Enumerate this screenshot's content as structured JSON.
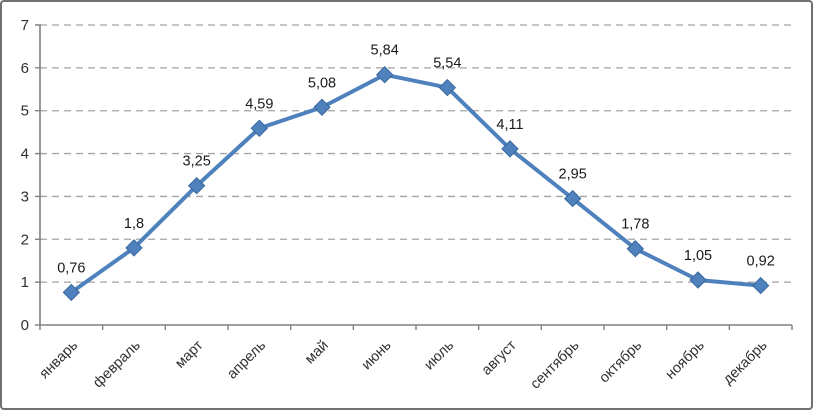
{
  "chart_data": {
    "type": "line",
    "title": "",
    "categories": [
      "январь",
      "февраль",
      "март",
      "апрель",
      "май",
      "июнь",
      "июль",
      "август",
      "сентябрь",
      "октябрь",
      "ноябрь",
      "декабрь"
    ],
    "series": [
      {
        "name": "",
        "values": [
          0.76,
          1.8,
          3.25,
          4.59,
          5.08,
          5.84,
          5.54,
          4.11,
          2.95,
          1.78,
          1.05,
          0.92
        ],
        "point_labels": [
          "0,76",
          "1,8",
          "3,25",
          "4,59",
          "5,08",
          "5,84",
          "5,54",
          "4,11",
          "2,95",
          "1,78",
          "1,05",
          "0,92"
        ]
      }
    ],
    "xlabel": "",
    "ylabel": "",
    "ylim": [
      0,
      7
    ],
    "y_ticks": [
      0,
      1,
      2,
      3,
      4,
      5,
      6,
      7
    ],
    "y_tick_labels": [
      "0",
      "1",
      "2",
      "3",
      "4",
      "5",
      "6",
      "7"
    ],
    "grid": "horizontal-dashed",
    "legend_position": "none",
    "x_label_rotation_deg": 45,
    "marker": "diamond",
    "colors": {
      "line": "#4F81BD",
      "marker_fill": "#4F81BD",
      "marker_edge": "#38689E",
      "axis": "#808080",
      "gridline": "#A3A3A3",
      "tick_label": "#303030",
      "data_label": "#1A1A1A",
      "frame_border": "#707070",
      "background": "#FFFFFF"
    }
  }
}
